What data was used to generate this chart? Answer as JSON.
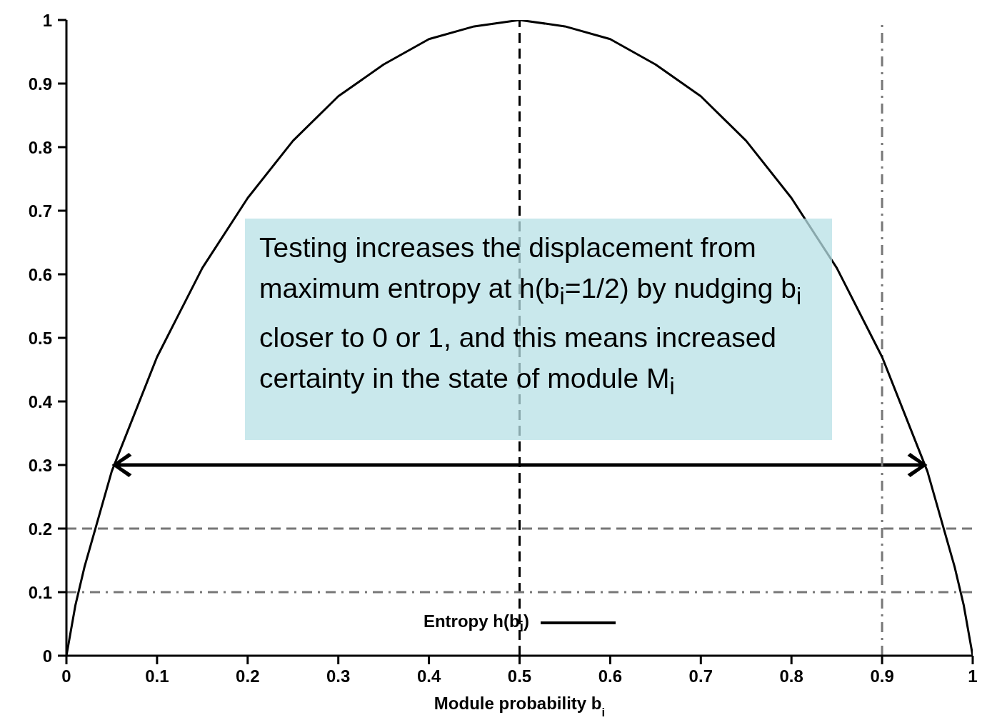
{
  "chart_data": {
    "type": "line",
    "xlabel": "Module probability b$_{i}$",
    "x": [
      0,
      0.01,
      0.02,
      0.05,
      0.1,
      0.15,
      0.2,
      0.25,
      0.3,
      0.35,
      0.4,
      0.45,
      0.5,
      0.55,
      0.6,
      0.65,
      0.7,
      0.75,
      0.8,
      0.85,
      0.9,
      0.95,
      0.98,
      0.99,
      1
    ],
    "series": [
      {
        "name": "Entropy h(b$_{i}$)",
        "color": "#000000",
        "values": [
          0,
          0.08,
          0.14,
          0.29,
          0.47,
          0.61,
          0.72,
          0.81,
          0.88,
          0.93,
          0.97,
          0.99,
          1,
          0.99,
          0.97,
          0.93,
          0.88,
          0.81,
          0.72,
          0.61,
          0.47,
          0.29,
          0.14,
          0.08,
          0
        ]
      }
    ],
    "xlim": [
      0,
      1
    ],
    "xticks": [
      0,
      0.1,
      0.2,
      0.3,
      0.4,
      0.5,
      0.6,
      0.7,
      0.8,
      0.9,
      1
    ],
    "ylim": [
      0,
      1
    ],
    "yticks": [
      0,
      0.1,
      0.2,
      0.3,
      0.4,
      0.5,
      0.6,
      0.7,
      0.8,
      0.9,
      1
    ],
    "ref_lines": [
      {
        "axis": "x",
        "value": 0.5,
        "color": "#000000",
        "line_style": "dashed"
      },
      {
        "axis": "x",
        "value": 0.9,
        "color": "#777777",
        "line_style": "dashdot"
      },
      {
        "axis": "y",
        "value": 0.2,
        "color": "#777777",
        "line_style": "dashed"
      },
      {
        "axis": "y",
        "value": 0.1,
        "color": "#777777",
        "line_style": "dashdot"
      }
    ],
    "annotations": [
      "Testing increases the displacement from maximum entropy at h(b$_{i}$=1/2) by nudging b$_{i}$ closer to 0 or 1, and this means increased certainty in the state of module M$_{i}$"
    ],
    "legend": "bottom",
    "marker": "none",
    "line_style": "solid"
  }
}
